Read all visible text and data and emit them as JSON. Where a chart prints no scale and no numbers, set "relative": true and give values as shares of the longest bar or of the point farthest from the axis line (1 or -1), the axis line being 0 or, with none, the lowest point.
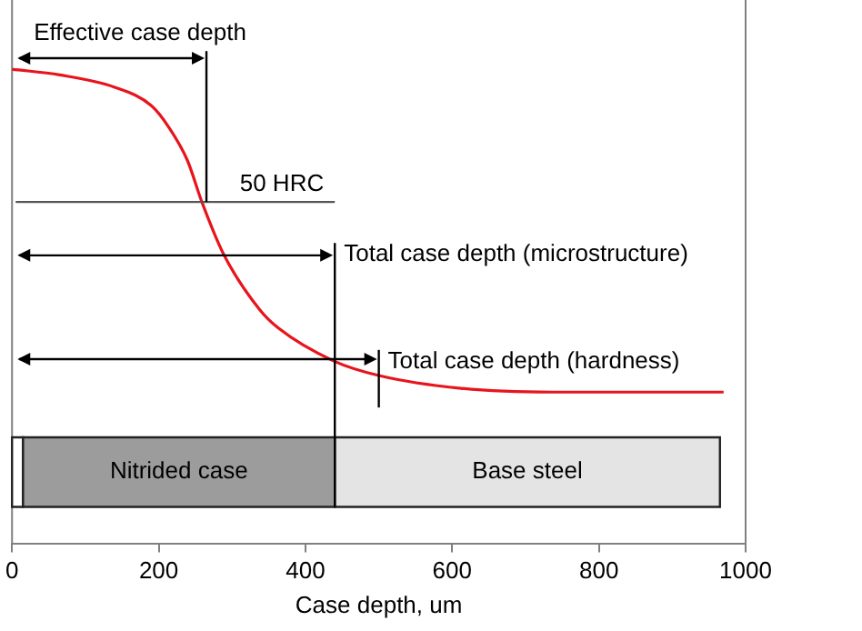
{
  "chart_data": {
    "type": "line",
    "relative": true,
    "xlabel": "Case depth, um",
    "xlim": [
      0,
      1000
    ],
    "xticks": [
      0,
      200,
      400,
      600,
      800,
      1000
    ],
    "series": [
      {
        "color": "#e8141c",
        "x": [
          0,
          65,
          140,
          190,
          214,
          239,
          259,
          289,
          338,
          363,
          438,
          500,
          612,
          736,
          970
        ],
        "values": [
          1.0,
          0.988,
          0.962,
          0.923,
          0.877,
          0.808,
          0.719,
          0.608,
          0.492,
          0.454,
          0.385,
          0.354,
          0.327,
          0.319,
          0.319
        ]
      }
    ],
    "ref_lines": [
      {
        "axis": "x",
        "value": 265,
        "label": "Effective case depth",
        "color": "#000000"
      },
      {
        "axis": "x",
        "value": 440,
        "label": "Total case depth (microstructure)",
        "color": "#000000"
      },
      {
        "axis": "x",
        "value": 500,
        "label": "Total case depth (hardness)",
        "color": "#000000"
      },
      {
        "axis": "y",
        "value": 0.72,
        "label": "50 HRC",
        "color": "#555555"
      }
    ],
    "bands": [
      {
        "axis": "x",
        "from": 0,
        "to": 15,
        "label": null,
        "color": "#ffffff"
      },
      {
        "axis": "x",
        "from": 15,
        "to": 440,
        "label": "Nitrided case",
        "color": "#9c9c9c"
      },
      {
        "axis": "x",
        "from": 440,
        "to": 965,
        "label": "Base steel",
        "color": "#e4e4e4"
      }
    ],
    "grid": false,
    "legend": false,
    "marker": "none",
    "line_style": "solid"
  }
}
